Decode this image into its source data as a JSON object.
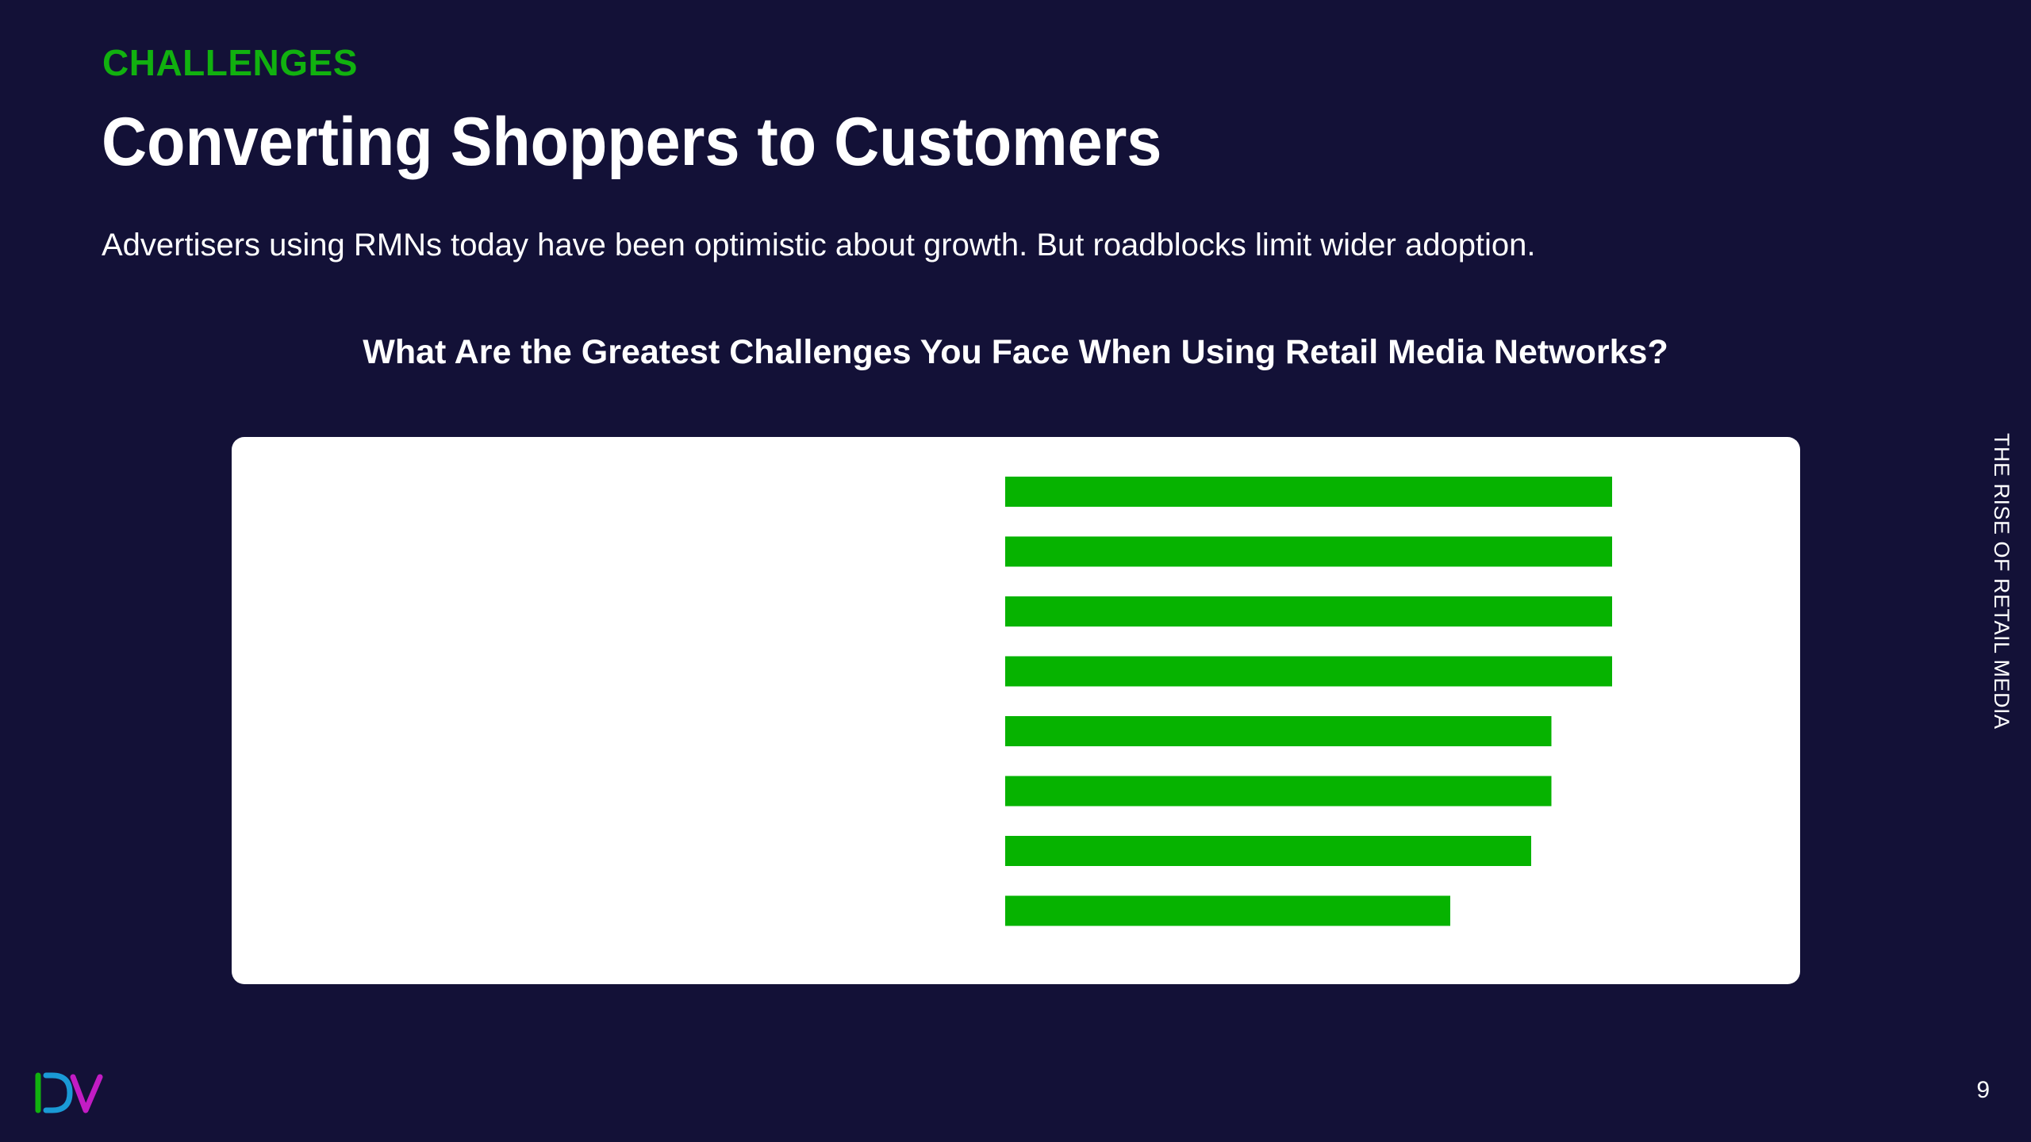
{
  "slide": {
    "eyebrow": "CHALLENGES",
    "title": "Converting Shoppers to Customers",
    "subtitle": "Advertisers using RMNs today have been optimistic about growth. But roadblocks limit wider adoption.",
    "side_label": "THE RISE OF RETAIL MEDIA",
    "page_number": "9"
  },
  "colors": {
    "background": "#131137",
    "accent": "#11b10f",
    "bar": "#06b300"
  },
  "logo": {
    "icon": "dv-logo-icon"
  },
  "chart_data": {
    "type": "bar",
    "orientation": "horizontal",
    "title": "What Are the Greatest Challenges You Face When Using Retail Media Networks?",
    "categories": [
      "",
      "",
      "",
      "",
      "",
      "",
      "",
      ""
    ],
    "values": [
      30,
      30,
      30,
      30,
      27,
      27,
      26,
      22
    ],
    "xlim": [
      0,
      30
    ],
    "grid": false,
    "legend": "none"
  }
}
